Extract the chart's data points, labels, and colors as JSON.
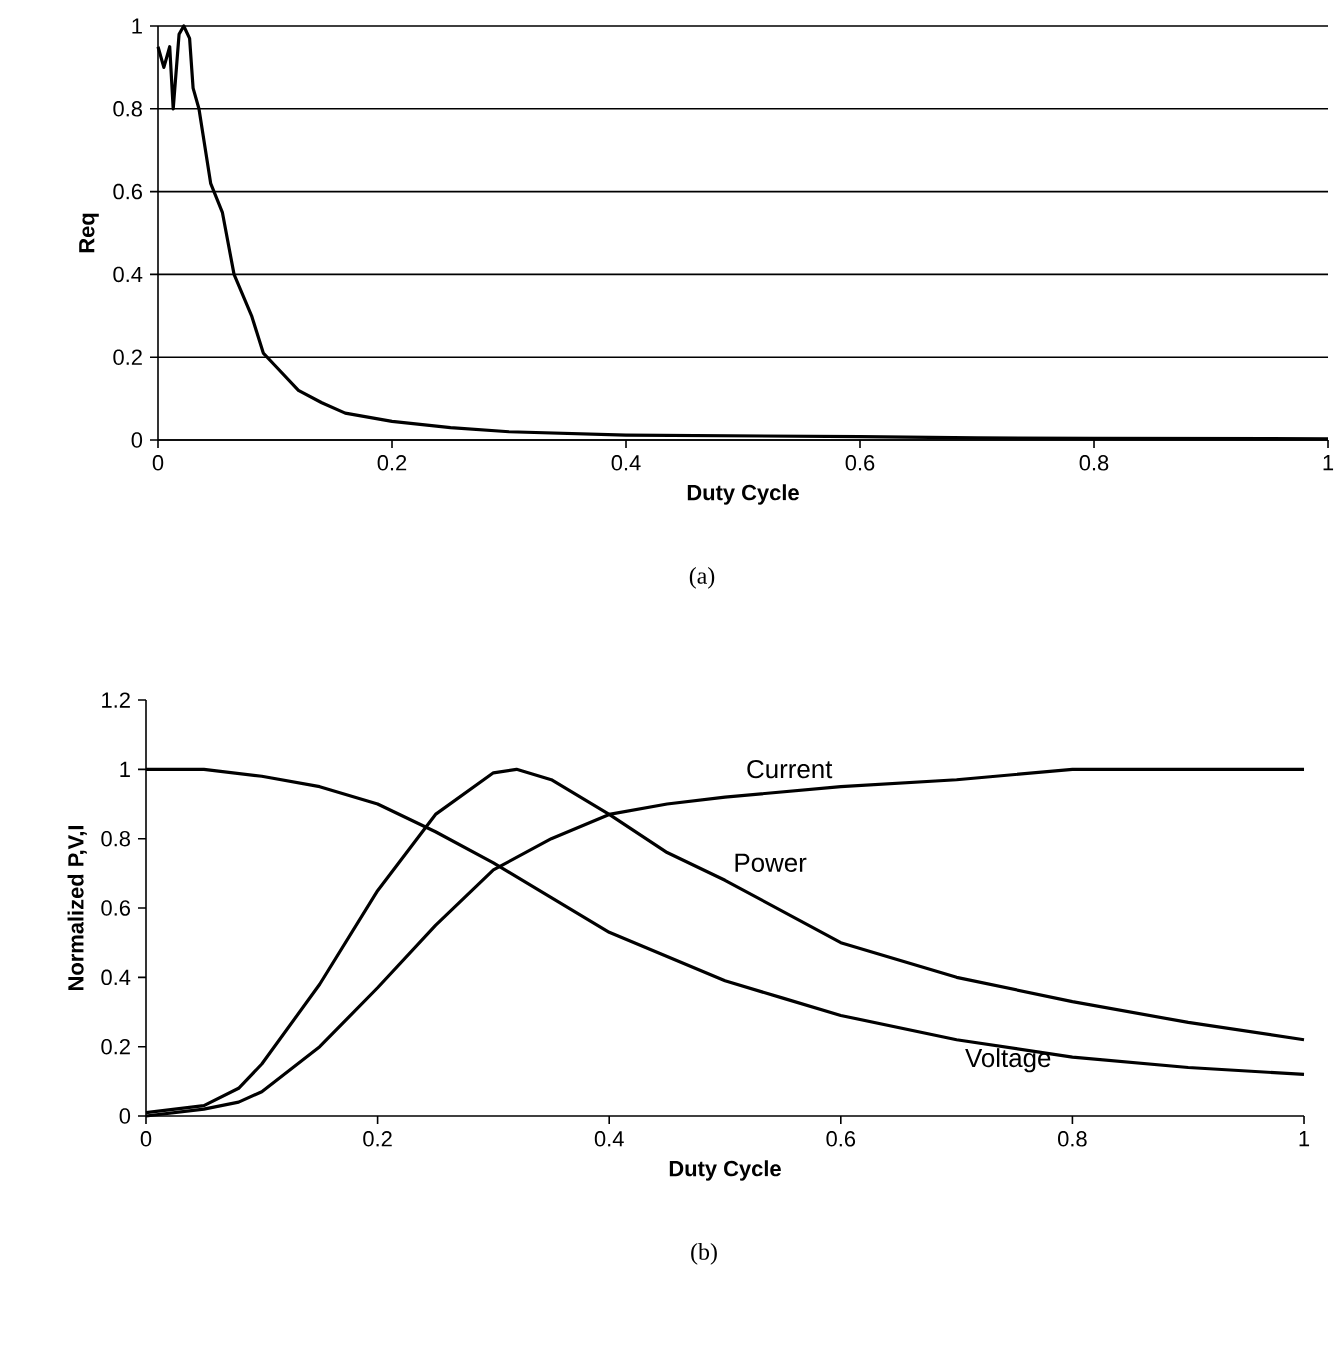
{
  "chart_data": [
    {
      "type": "line",
      "xlabel": "Duty Cycle",
      "ylabel": "Req",
      "xlim": [
        0,
        1
      ],
      "ylim": [
        0,
        1
      ],
      "xticks": [
        0,
        0.2,
        0.4,
        0.6,
        0.8,
        1
      ],
      "yticks": [
        0,
        0.2,
        0.4,
        0.6,
        0.8,
        1
      ],
      "grid": "y",
      "annotations": [
        "(a)"
      ],
      "series": [
        {
          "color": "#000000",
          "x": [
            0,
            0.005,
            0.01,
            0.013,
            0.018,
            0.022,
            0.027,
            0.03,
            0.035,
            0.045,
            0.055,
            0.065,
            0.08,
            0.09,
            0.1,
            0.12,
            0.14,
            0.16,
            0.2,
            0.25,
            0.3,
            0.4,
            0.5,
            0.6,
            0.7,
            0.8,
            1
          ],
          "values": [
            0.95,
            0.9,
            0.95,
            0.8,
            0.98,
            1.0,
            0.97,
            0.85,
            0.8,
            0.62,
            0.55,
            0.4,
            0.3,
            0.21,
            0.18,
            0.12,
            0.09,
            0.065,
            0.045,
            0.03,
            0.02,
            0.012,
            0.01,
            0.008,
            0.005,
            0.004,
            0.003
          ]
        }
      ]
    },
    {
      "type": "line",
      "xlabel": "Duty Cycle",
      "ylabel": "Normalized P,V,I",
      "xlim": [
        0,
        1
      ],
      "ylim": [
        0,
        1.2
      ],
      "xticks": [
        0,
        0.2,
        0.4,
        0.6,
        0.8,
        1
      ],
      "yticks": [
        0,
        0.2,
        0.4,
        0.6,
        0.8,
        1,
        1.2
      ],
      "grid": false,
      "annotations": [
        "(b)"
      ],
      "series": [
        {
          "name": "Current",
          "color": "#000000",
          "x": [
            0,
            0.05,
            0.08,
            0.1,
            0.15,
            0.2,
            0.25,
            0.3,
            0.35,
            0.4,
            0.45,
            0.5,
            0.6,
            0.7,
            0.8,
            0.9,
            1
          ],
          "values": [
            0.0,
            0.02,
            0.04,
            0.07,
            0.2,
            0.37,
            0.55,
            0.71,
            0.8,
            0.87,
            0.9,
            0.92,
            0.95,
            0.97,
            1.0,
            1.0,
            1.0
          ]
        },
        {
          "name": "Power",
          "color": "#000000",
          "x": [
            0,
            0.05,
            0.08,
            0.1,
            0.15,
            0.2,
            0.25,
            0.3,
            0.32,
            0.35,
            0.4,
            0.45,
            0.5,
            0.6,
            0.7,
            0.8,
            0.9,
            1
          ],
          "values": [
            0.01,
            0.03,
            0.08,
            0.15,
            0.38,
            0.65,
            0.87,
            0.99,
            1.0,
            0.97,
            0.87,
            0.76,
            0.68,
            0.5,
            0.4,
            0.33,
            0.27,
            0.22
          ]
        },
        {
          "name": "Voltage",
          "color": "#000000",
          "x": [
            0,
            0.05,
            0.1,
            0.15,
            0.2,
            0.25,
            0.3,
            0.35,
            0.4,
            0.45,
            0.5,
            0.55,
            0.6,
            0.7,
            0.8,
            0.9,
            1
          ],
          "values": [
            1.0,
            1.0,
            0.98,
            0.95,
            0.9,
            0.82,
            0.73,
            0.63,
            0.53,
            0.46,
            0.39,
            0.34,
            0.29,
            0.22,
            0.17,
            0.14,
            0.12
          ]
        }
      ]
    }
  ]
}
